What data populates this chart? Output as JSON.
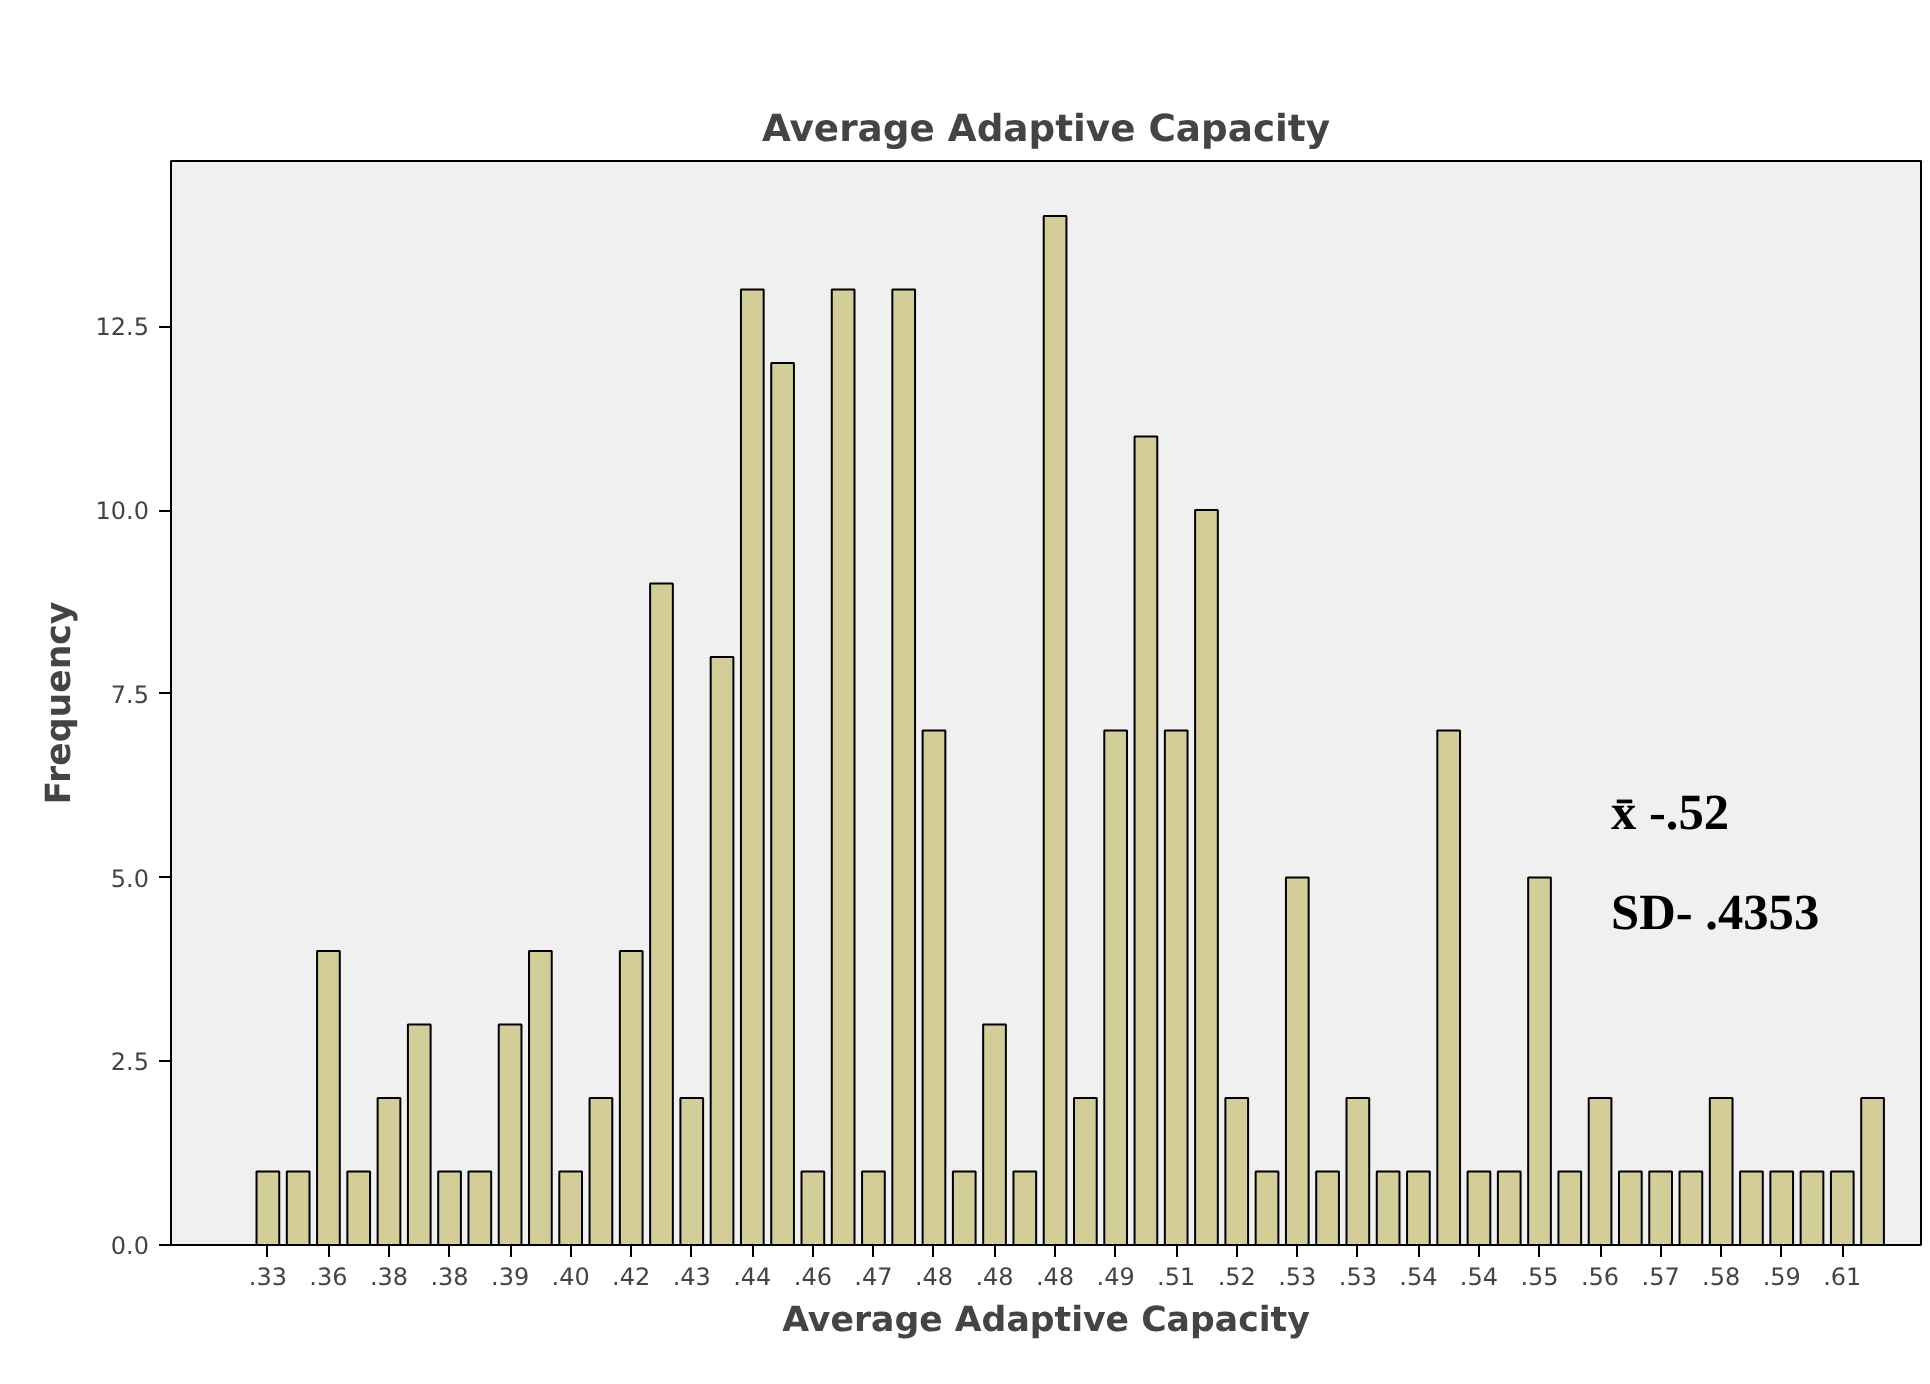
{
  "chart_data": {
    "type": "bar",
    "title": "Average Adaptive Capacity",
    "xlabel": "Average Adaptive Capacity",
    "ylabel": "Frequency",
    "categories": [
      ".33",
      null,
      ".36",
      null,
      ".38",
      null,
      ".38",
      null,
      ".39",
      null,
      ".40",
      null,
      ".42",
      null,
      ".43",
      null,
      ".44",
      null,
      ".46",
      null,
      ".47",
      null,
      ".48",
      null,
      ".48",
      null,
      ".48",
      null,
      ".49",
      null,
      ".51",
      null,
      ".52",
      null,
      ".53",
      null,
      ".53",
      null,
      ".54",
      null,
      ".54",
      null,
      ".55",
      null,
      ".56",
      null,
      ".57",
      null,
      ".58",
      null,
      ".59",
      null,
      ".61",
      null
    ],
    "values": [
      1,
      1,
      4,
      1,
      2,
      3,
      1,
      1,
      3,
      4,
      1,
      2,
      4,
      9,
      2,
      8,
      13,
      12,
      1,
      13,
      1,
      13,
      7,
      1,
      3,
      1,
      14,
      2,
      7,
      11,
      7,
      10,
      2,
      1,
      5,
      1,
      2,
      1,
      1,
      7,
      1,
      1,
      5,
      1,
      2,
      1,
      1,
      1,
      2,
      1,
      1,
      1,
      1,
      2
    ],
    "color": "#d3ce97",
    "ylim": [
      0,
      14.75
    ],
    "yticks": [
      {
        "value": 0,
        "label": "0.0"
      },
      {
        "value": 2.5,
        "label": "2.5"
      },
      {
        "value": 5,
        "label": "5.0"
      },
      {
        "value": 7.5,
        "label": "7.5"
      },
      {
        "value": 10,
        "label": "10.0"
      },
      {
        "value": 12.5,
        "label": "12.5"
      }
    ],
    "annotations": [
      "x̄ -.52",
      "SD- .4353"
    ]
  }
}
